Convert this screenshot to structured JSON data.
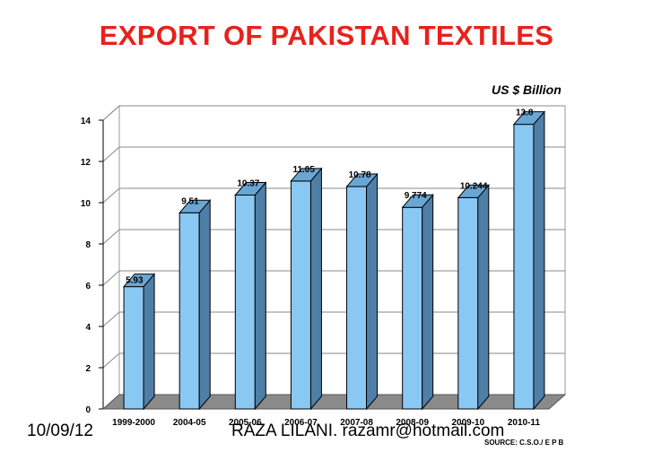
{
  "slide": {
    "title": "EXPORT OF PAKISTAN TEXTILES",
    "unit_label": "US $ Billion",
    "footer_date": "10/09/12",
    "footer_author": "RAZA LILANI. razamr@hotmail.com",
    "source": "SOURCE: C.S.O./ E P B"
  },
  "colors": {
    "title": "#e8211b",
    "bar_front": "#8ac8f4",
    "bar_side": "#4f7fa6",
    "bar_top": "#6aa6d4",
    "floor": "#8a8a8a"
  },
  "chart_data": {
    "type": "bar",
    "title": "EXPORT OF PAKISTAN TEXTILES",
    "ylabel": "US $ Billion",
    "categories": [
      "1999-2000",
      "2004-05",
      "2005-06",
      "2006-07",
      "2007-08",
      "2008-09",
      "2009-10",
      "2010-11"
    ],
    "values": [
      5.93,
      9.51,
      10.37,
      11.05,
      10.78,
      9.774,
      10.244,
      13.8
    ],
    "data_labels": [
      "5.93",
      "9.51",
      "10.37",
      "11.05",
      "10.78",
      "9.774",
      "10.244",
      "13.8"
    ],
    "ylim": [
      0,
      14
    ],
    "yticks": [
      0,
      2,
      4,
      6,
      8,
      10,
      12,
      14
    ],
    "grid": true,
    "style": "3d"
  }
}
